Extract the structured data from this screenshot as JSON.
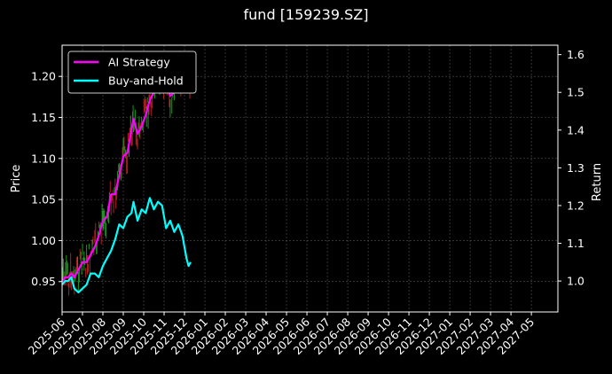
{
  "chart_data": {
    "type": "line",
    "title": "fund [159239.SZ]",
    "ylabel": "Price",
    "y2label": "Return",
    "xlabel": "",
    "ylim": [
      0.913,
      1.238
    ],
    "y2lim": [
      0.918,
      1.625
    ],
    "yticks": [
      0.95,
      1.0,
      1.05,
      1.1,
      1.15,
      1.2
    ],
    "y2ticks": [
      1.0,
      1.1,
      1.2,
      1.3,
      1.4,
      1.5,
      1.6
    ],
    "xticks": [
      "2025-06",
      "2025-07",
      "2025-08",
      "2025-09",
      "2025-10",
      "2025-11",
      "2025-12",
      "2026-01",
      "2026-02",
      "2026-03",
      "2026-04",
      "2026-05",
      "2026-06",
      "2026-07",
      "2026-08",
      "2026-09",
      "2026-10",
      "2026-11",
      "2026-12",
      "2027-01",
      "2027-02",
      "2027-03",
      "2027-04",
      "2027-05"
    ],
    "grid": true,
    "legend_position": "top-left",
    "x_range": [
      0,
      24.3
    ],
    "series": [
      {
        "name": "AI Strategy",
        "axis": "right",
        "color": "#ff00ff",
        "x": [
          0.0,
          0.15,
          0.3,
          0.45,
          0.6,
          0.8,
          1.0,
          1.2,
          1.4,
          1.6,
          1.8,
          2.0,
          2.2,
          2.4,
          2.6,
          2.8,
          3.0,
          3.2,
          3.4,
          3.5,
          3.7,
          3.9,
          4.1,
          4.3,
          4.5,
          4.7,
          4.9,
          5.1,
          5.3,
          5.5,
          5.7,
          5.9,
          6.1,
          6.3
        ],
        "values": [
          1.0,
          1.01,
          1.01,
          1.02,
          1.01,
          1.03,
          1.05,
          1.05,
          1.07,
          1.09,
          1.12,
          1.16,
          1.17,
          1.23,
          1.23,
          1.28,
          1.33,
          1.34,
          1.4,
          1.43,
          1.39,
          1.41,
          1.44,
          1.48,
          1.5,
          1.52,
          1.52,
          1.53,
          1.49,
          1.5,
          1.53,
          1.54,
          1.55,
          1.54
        ]
      },
      {
        "name": "Buy-and-Hold",
        "axis": "right",
        "color": "#00ffff",
        "x": [
          0.0,
          0.15,
          0.3,
          0.45,
          0.6,
          0.8,
          1.0,
          1.2,
          1.4,
          1.6,
          1.8,
          2.0,
          2.2,
          2.4,
          2.6,
          2.8,
          3.0,
          3.2,
          3.4,
          3.5,
          3.7,
          3.9,
          4.1,
          4.3,
          4.5,
          4.7,
          4.9,
          5.1,
          5.3,
          5.5,
          5.7,
          5.9,
          6.0,
          6.1,
          6.2,
          6.3
        ],
        "values": [
          0.99,
          1.0,
          1.0,
          1.01,
          0.98,
          0.97,
          0.98,
          0.99,
          1.02,
          1.02,
          1.01,
          1.04,
          1.06,
          1.08,
          1.11,
          1.15,
          1.14,
          1.17,
          1.18,
          1.21,
          1.16,
          1.19,
          1.18,
          1.22,
          1.19,
          1.21,
          1.2,
          1.14,
          1.16,
          1.13,
          1.15,
          1.12,
          1.09,
          1.06,
          1.04,
          1.05
        ]
      }
    ]
  }
}
